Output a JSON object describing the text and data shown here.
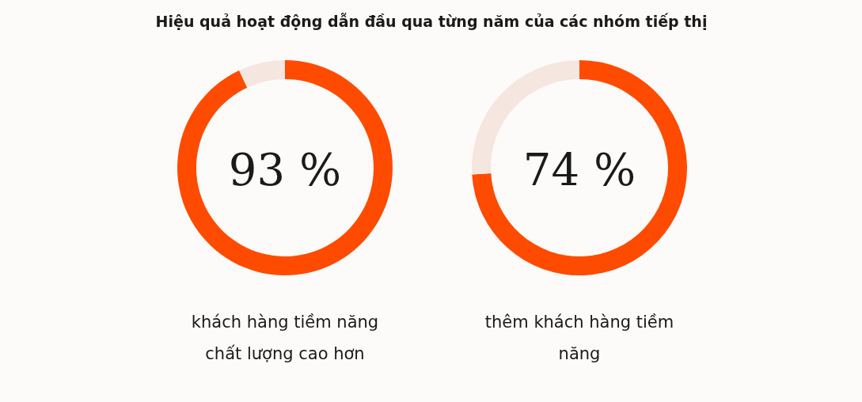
{
  "chart_data": [
    {
      "type": "donut",
      "title": "Hiệu quả hoạt động dẫn đầu qua từng năm của các nhóm tiếp thị",
      "categories": [
        null,
        null
      ],
      "values": [
        93,
        7
      ],
      "colors": [
        "#ff4b00",
        "#f6e6e0"
      ],
      "value_labels": [
        "93 %",
        null
      ],
      "xlabel": "khách hàng tiềm năng chất lượng cao hơn"
    },
    {
      "type": "donut",
      "categories": [
        null,
        null
      ],
      "values": [
        74,
        26
      ],
      "colors": [
        "#ff4b00",
        "#f6e6e0"
      ],
      "value_labels": [
        "74 %",
        null
      ],
      "xlabel": "thêm khách hàng tiềm năng"
    }
  ]
}
